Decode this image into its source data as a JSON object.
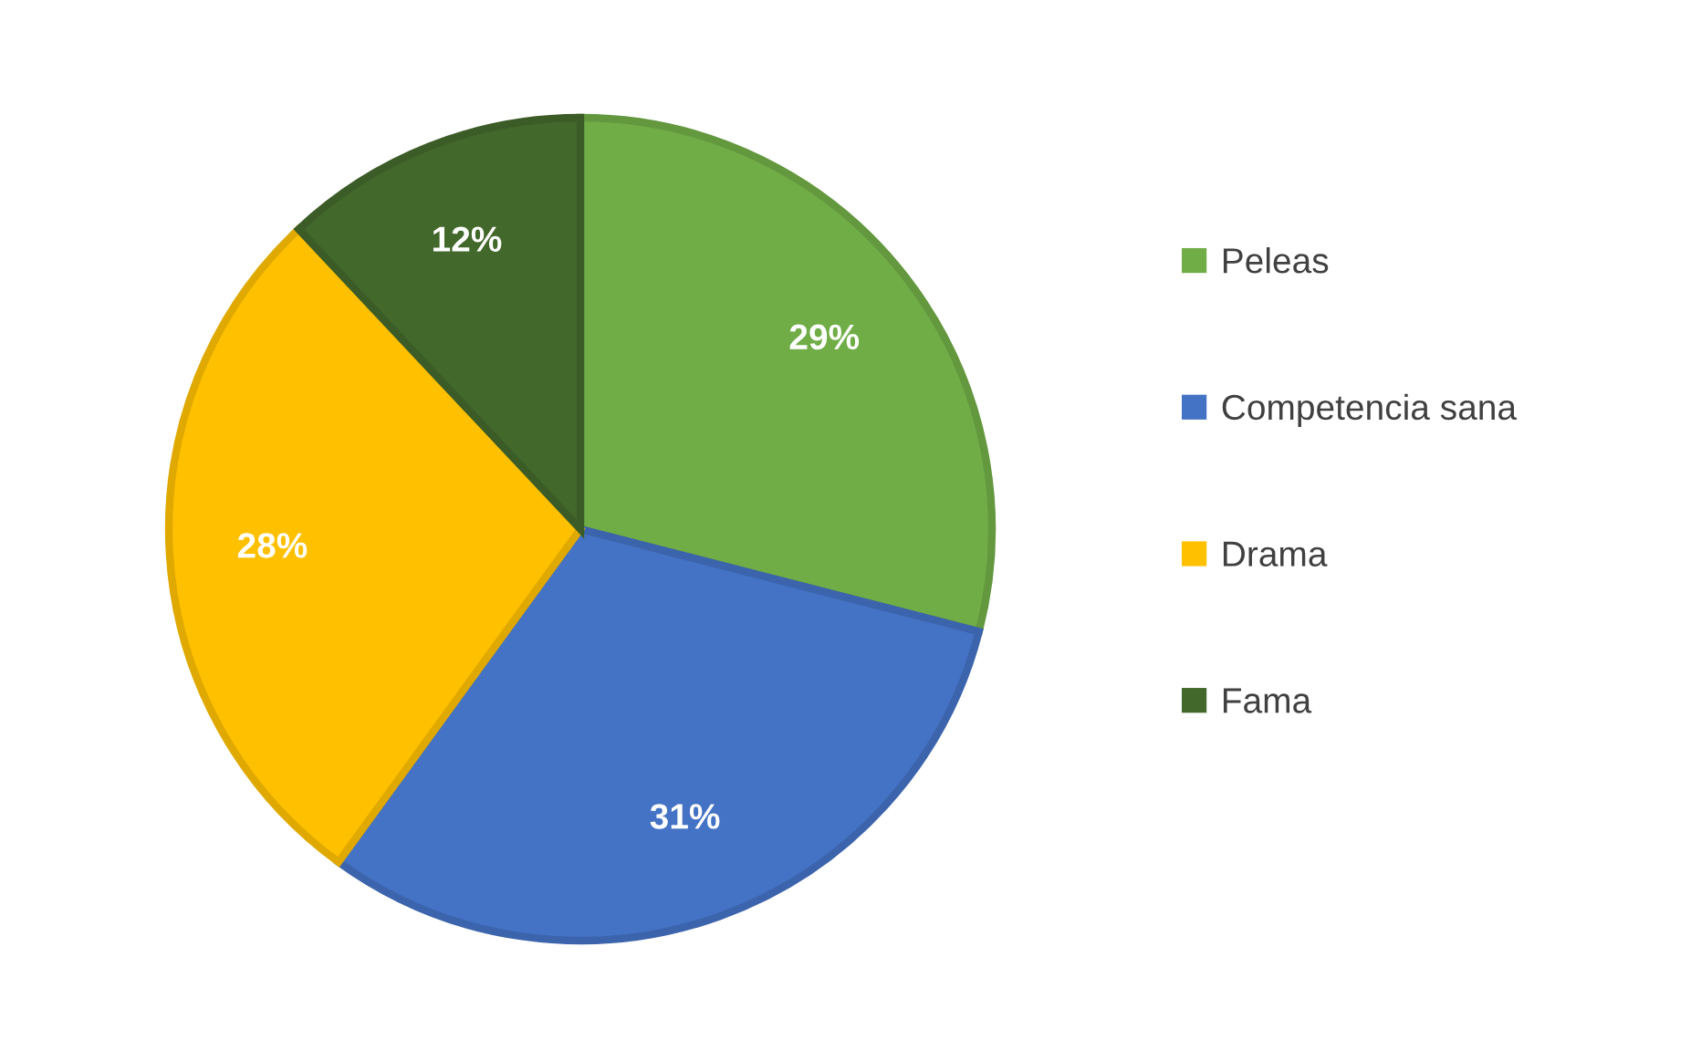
{
  "chart_data": {
    "type": "pie",
    "categories": [
      "Peleas",
      "Competencia sana",
      "Drama",
      "Fama"
    ],
    "values": [
      29,
      31,
      28,
      12
    ],
    "value_labels": [
      "29%",
      "31%",
      "28%",
      "12%"
    ],
    "colors": [
      "#70ad47",
      "#4472c4",
      "#ffc000",
      "#43682b"
    ],
    "legend": "right"
  }
}
